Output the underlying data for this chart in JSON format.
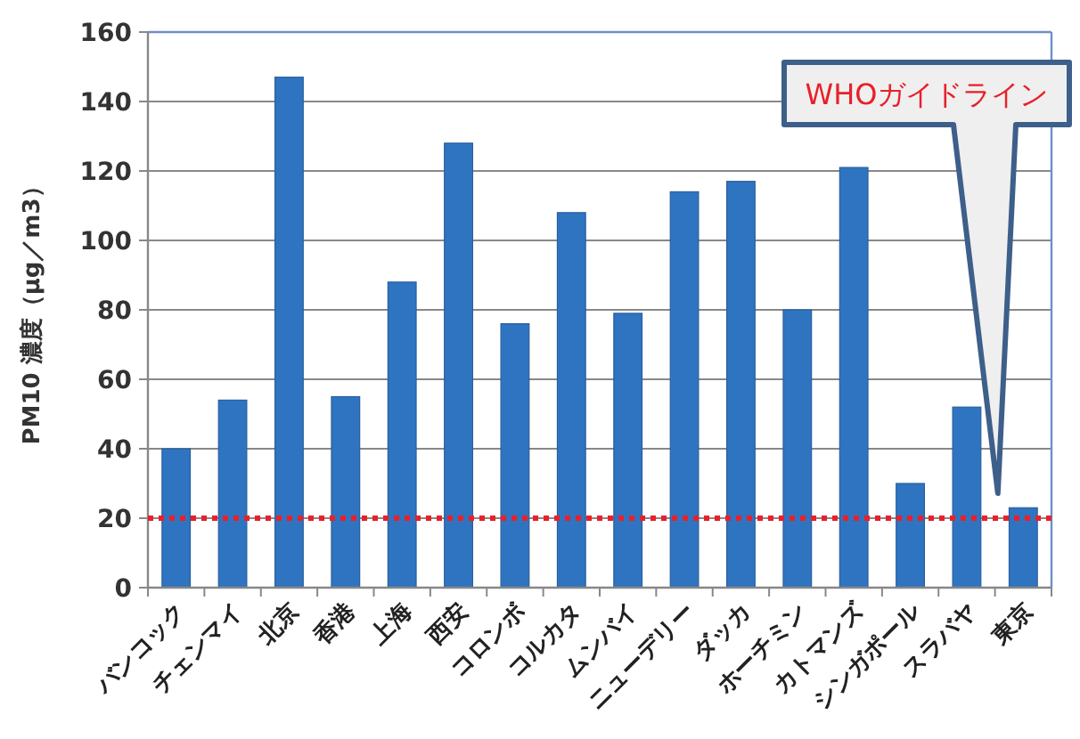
{
  "chart_data": {
    "type": "bar",
    "ylabel": "PM10 濃度（μg／m3）",
    "categories": [
      "バンコック",
      "チェンマイ",
      "北京",
      "香港",
      "上海",
      "西安",
      "コロンボ",
      "コルカタ",
      "ムンバイ",
      "ニューデリー",
      "ダッカ",
      "ホーチミン",
      "カトマンズ",
      "シンガポール",
      "スラバヤ",
      "東京"
    ],
    "values": [
      40,
      54,
      147,
      55,
      88,
      128,
      76,
      108,
      79,
      114,
      117,
      80,
      121,
      30,
      52,
      23
    ],
    "color": "#2f74c0",
    "ylim": [
      0,
      160
    ],
    "yticks": [
      0,
      20,
      40,
      60,
      80,
      100,
      120,
      140,
      160
    ],
    "grid": "y",
    "ref_lines": [
      {
        "axis": "y",
        "value": 20,
        "label": "WHOガイドライン",
        "color": "#e8202a",
        "line_style": "dotted"
      }
    ]
  }
}
